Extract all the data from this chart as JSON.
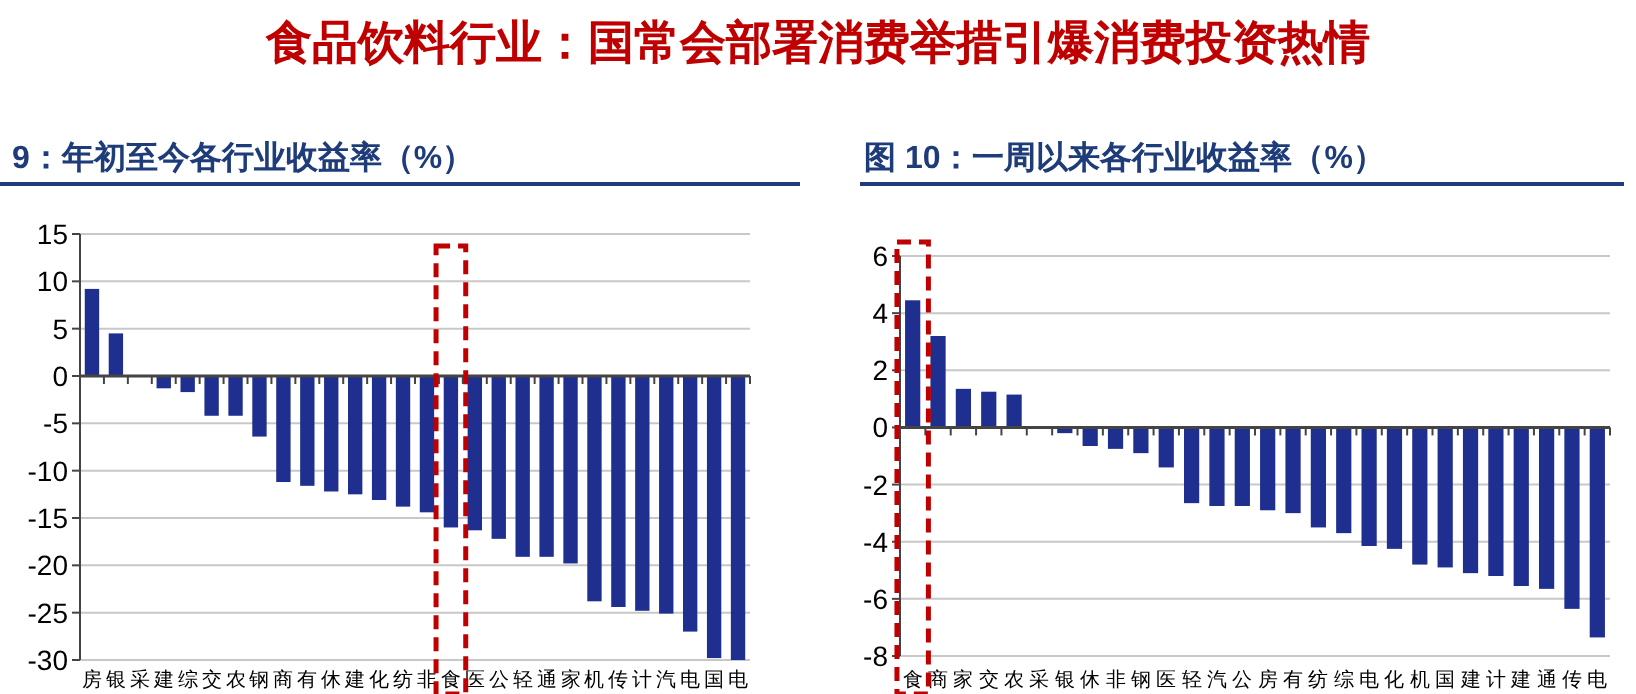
{
  "chart_data": [
    {
      "type": "bar",
      "title": "9：年初至今各行业收益率（%）",
      "annotations": [
        "食品饮料行业：国常会部署消费举措引爆消费投资热情"
      ],
      "categories": [
        "房",
        "银",
        "采",
        "建",
        "综",
        "交",
        "农",
        "钢",
        "商",
        "有",
        "休",
        "建",
        "化",
        "纺",
        "非",
        "食",
        "医",
        "公",
        "轻",
        "通",
        "家",
        "机",
        "传",
        "计",
        "汽",
        "电",
        "国",
        "电"
      ],
      "values": [
        9.2,
        4.5,
        0,
        -1.3,
        -1.7,
        -4.2,
        -4.2,
        -6.4,
        -11.2,
        -11.6,
        -12.2,
        -12.5,
        -13.1,
        -13.8,
        -14.4,
        -16.0,
        -16.3,
        -17.2,
        -19.1,
        -19.1,
        -19.8,
        -23.8,
        -24.4,
        -24.8,
        -25.1,
        -27.0,
        -29.8,
        -30
      ],
      "color": "#1f2f8f",
      "ylim": [
        -30,
        15
      ],
      "yticks": [
        -30,
        -25,
        -20,
        -15,
        -10,
        -5,
        0,
        5,
        10,
        15
      ],
      "grid": "y"
    },
    {
      "type": "bar",
      "title": "图 10：一周以来各行业收益率（%）",
      "categories": [
        "食",
        "商",
        "家",
        "交",
        "农",
        "采",
        "银",
        "休",
        "非",
        "钢",
        "医",
        "轻",
        "汽",
        "公",
        "房",
        "有",
        "纺",
        "综",
        "电",
        "化",
        "机",
        "国",
        "建",
        "计",
        "建",
        "通",
        "传",
        "电"
      ],
      "values": [
        4.45,
        3.2,
        1.35,
        1.25,
        1.15,
        0,
        -0.2,
        -0.65,
        -0.75,
        -0.9,
        -1.4,
        -2.65,
        -2.75,
        -2.75,
        -2.9,
        -3.0,
        -3.5,
        -3.7,
        -4.15,
        -4.25,
        -4.8,
        -4.9,
        -5.1,
        -5.2,
        -5.55,
        -5.65,
        -6.35,
        -7.35
      ],
      "color": "#1f2f8f",
      "ylim": [
        -8,
        6
      ],
      "yticks": [
        -8,
        -6,
        -4,
        -2,
        0,
        2,
        4,
        6
      ],
      "grid": "y"
    }
  ]
}
